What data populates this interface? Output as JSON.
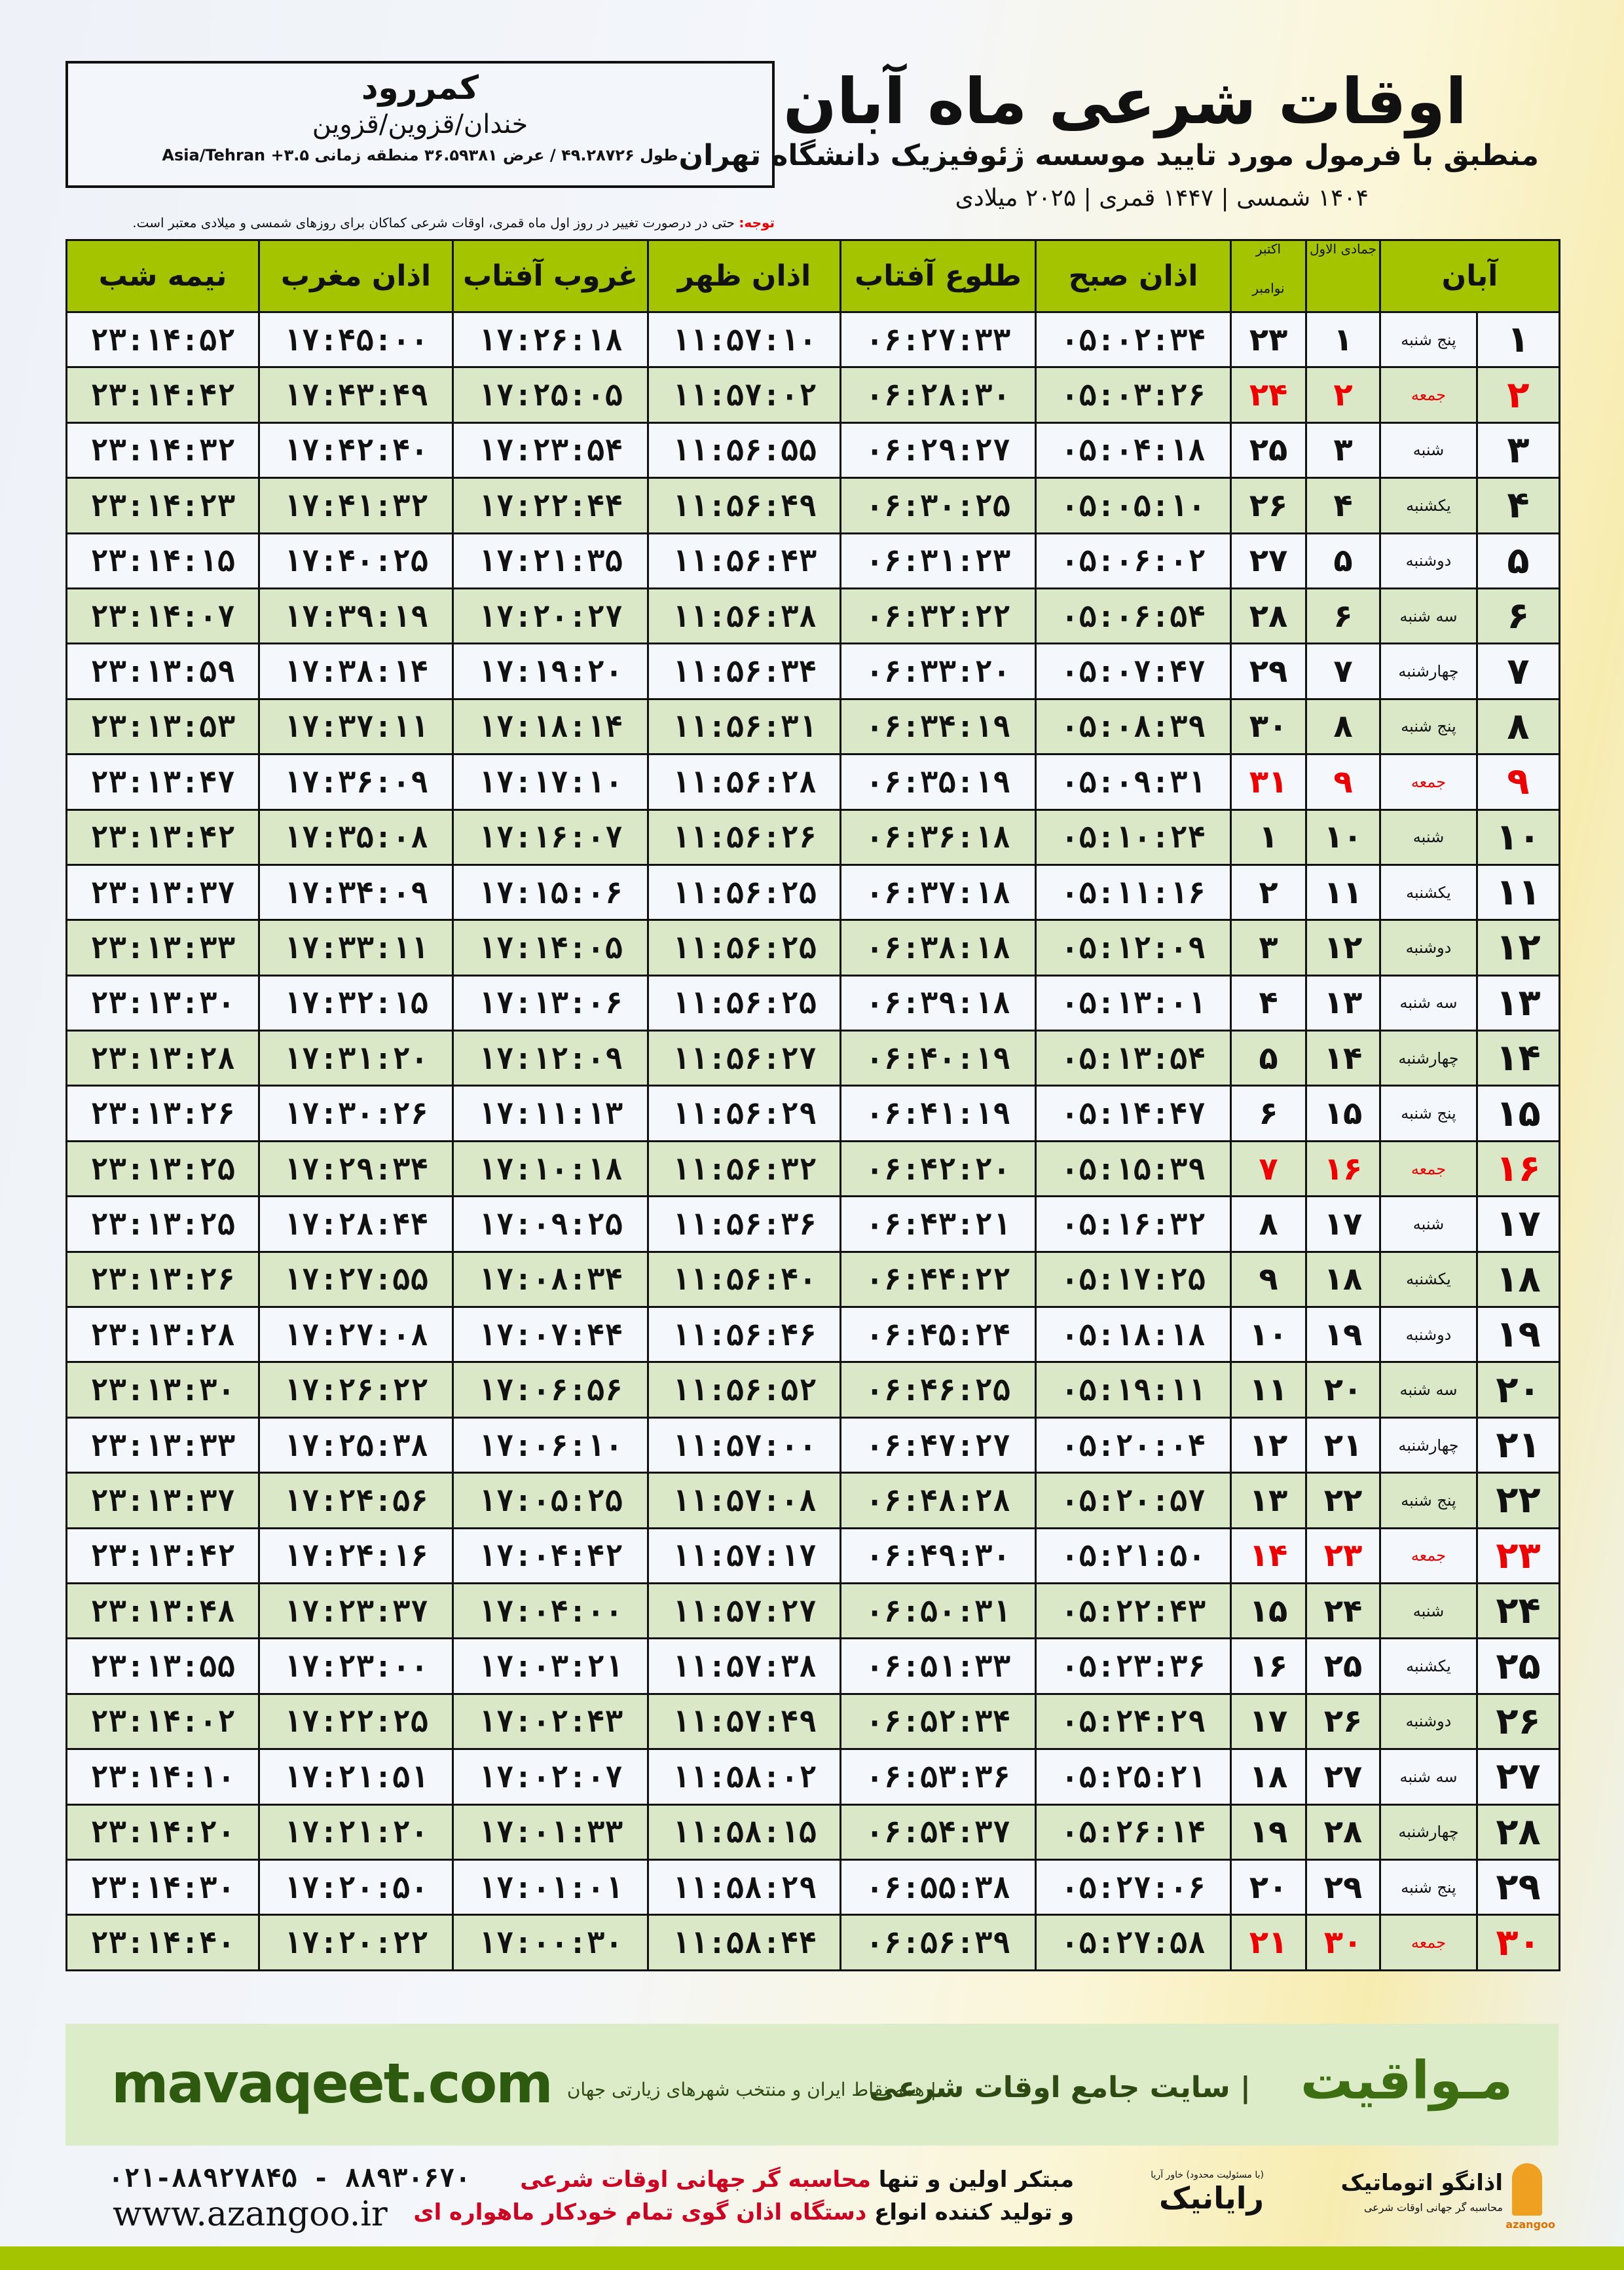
{
  "info": {
    "city": "کمررود",
    "province": "خندان/قزوین/قزوین",
    "coords": "طول ۴۹.۲۸۷۲۶ / عرض ۳۶.۵۹۳۸۱ منطقه زمانی ۳.۵+ Asia/Tehran"
  },
  "header": {
    "title": "اوقات شرعی ماه آبان",
    "subtitle": "منطبق با فرمول مورد تایید موسسه ژئوفیزیک دانشگاه تهران",
    "date": "۱۴۰۴ شمسی | ۱۴۴۷ قمری | ۲۰۲۵ میلادی"
  },
  "note": {
    "label": "توجه:",
    "text": " حتی در درصورت تغییر در روز اول ماه قمری، اوقات شرعی کماکان برای روزهای شمسی و میلادی معتبر است."
  },
  "table": {
    "headers": {
      "day": "آبان",
      "jumada": "جمادی الاول",
      "gregorian_top": "اکتبر",
      "gregorian_bottom": "نوامبر",
      "sobh": "اذان صبح",
      "tolu": "طلوع آفتاب",
      "zohr": "اذان ظهر",
      "ghorub": "غروب آفتاب",
      "maghreb": "اذان مغرب",
      "nimeh": "نیمه شب"
    },
    "highlight_color": "#e00000",
    "header_color": "#a4c400",
    "rows": [
      [
        "۱",
        "پنج شنبه",
        "۱",
        "۲۳",
        "۰۵:۰۲:۳۴",
        "۰۶:۲۷:۳۳",
        "۱۱:۵۷:۱۰",
        "۱۷:۲۶:۱۸",
        "۱۷:۴۵:۰۰",
        "۲۳:۱۴:۵۲"
      ],
      [
        "۲",
        "جمعه",
        "۲",
        "۲۴",
        "۰۵:۰۳:۲۶",
        "۰۶:۲۸:۳۰",
        "۱۱:۵۷:۰۲",
        "۱۷:۲۵:۰۵",
        "۱۷:۴۳:۴۹",
        "۲۳:۱۴:۴۲"
      ],
      [
        "۳",
        "شنبه",
        "۳",
        "۲۵",
        "۰۵:۰۴:۱۸",
        "۰۶:۲۹:۲۷",
        "۱۱:۵۶:۵۵",
        "۱۷:۲۳:۵۴",
        "۱۷:۴۲:۴۰",
        "۲۳:۱۴:۳۲"
      ],
      [
        "۴",
        "یکشنبه",
        "۴",
        "۲۶",
        "۰۵:۰۵:۱۰",
        "۰۶:۳۰:۲۵",
        "۱۱:۵۶:۴۹",
        "۱۷:۲۲:۴۴",
        "۱۷:۴۱:۳۲",
        "۲۳:۱۴:۲۳"
      ],
      [
        "۵",
        "دوشنبه",
        "۵",
        "۲۷",
        "۰۵:۰۶:۰۲",
        "۰۶:۳۱:۲۳",
        "۱۱:۵۶:۴۳",
        "۱۷:۲۱:۳۵",
        "۱۷:۴۰:۲۵",
        "۲۳:۱۴:۱۵"
      ],
      [
        "۶",
        "سه شنبه",
        "۶",
        "۲۸",
        "۰۵:۰۶:۵۴",
        "۰۶:۳۲:۲۲",
        "۱۱:۵۶:۳۸",
        "۱۷:۲۰:۲۷",
        "۱۷:۳۹:۱۹",
        "۲۳:۱۴:۰۷"
      ],
      [
        "۷",
        "چهارشنبه",
        "۷",
        "۲۹",
        "۰۵:۰۷:۴۷",
        "۰۶:۳۳:۲۰",
        "۱۱:۵۶:۳۴",
        "۱۷:۱۹:۲۰",
        "۱۷:۳۸:۱۴",
        "۲۳:۱۳:۵۹"
      ],
      [
        "۸",
        "پنج شنبه",
        "۸",
        "۳۰",
        "۰۵:۰۸:۳۹",
        "۰۶:۳۴:۱۹",
        "۱۱:۵۶:۳۱",
        "۱۷:۱۸:۱۴",
        "۱۷:۳۷:۱۱",
        "۲۳:۱۳:۵۳"
      ],
      [
        "۹",
        "جمعه",
        "۹",
        "۳۱",
        "۰۵:۰۹:۳۱",
        "۰۶:۳۵:۱۹",
        "۱۱:۵۶:۲۸",
        "۱۷:۱۷:۱۰",
        "۱۷:۳۶:۰۹",
        "۲۳:۱۳:۴۷"
      ],
      [
        "۱۰",
        "شنبه",
        "۱۰",
        "۱",
        "۰۵:۱۰:۲۴",
        "۰۶:۳۶:۱۸",
        "۱۱:۵۶:۲۶",
        "۱۷:۱۶:۰۷",
        "۱۷:۳۵:۰۸",
        "۲۳:۱۳:۴۲"
      ],
      [
        "۱۱",
        "یکشنبه",
        "۱۱",
        "۲",
        "۰۵:۱۱:۱۶",
        "۰۶:۳۷:۱۸",
        "۱۱:۵۶:۲۵",
        "۱۷:۱۵:۰۶",
        "۱۷:۳۴:۰۹",
        "۲۳:۱۳:۳۷"
      ],
      [
        "۱۲",
        "دوشنبه",
        "۱۲",
        "۳",
        "۰۵:۱۲:۰۹",
        "۰۶:۳۸:۱۸",
        "۱۱:۵۶:۲۵",
        "۱۷:۱۴:۰۵",
        "۱۷:۳۳:۱۱",
        "۲۳:۱۳:۳۳"
      ],
      [
        "۱۳",
        "سه شنبه",
        "۱۳",
        "۴",
        "۰۵:۱۳:۰۱",
        "۰۶:۳۹:۱۸",
        "۱۱:۵۶:۲۵",
        "۱۷:۱۳:۰۶",
        "۱۷:۳۲:۱۵",
        "۲۳:۱۳:۳۰"
      ],
      [
        "۱۴",
        "چهارشنبه",
        "۱۴",
        "۵",
        "۰۵:۱۳:۵۴",
        "۰۶:۴۰:۱۹",
        "۱۱:۵۶:۲۷",
        "۱۷:۱۲:۰۹",
        "۱۷:۳۱:۲۰",
        "۲۳:۱۳:۲۸"
      ],
      [
        "۱۵",
        "پنج شنبه",
        "۱۵",
        "۶",
        "۰۵:۱۴:۴۷",
        "۰۶:۴۱:۱۹",
        "۱۱:۵۶:۲۹",
        "۱۷:۱۱:۱۳",
        "۱۷:۳۰:۲۶",
        "۲۳:۱۳:۲۶"
      ],
      [
        "۱۶",
        "جمعه",
        "۱۶",
        "۷",
        "۰۵:۱۵:۳۹",
        "۰۶:۴۲:۲۰",
        "۱۱:۵۶:۳۲",
        "۱۷:۱۰:۱۸",
        "۱۷:۲۹:۳۴",
        "۲۳:۱۳:۲۵"
      ],
      [
        "۱۷",
        "شنبه",
        "۱۷",
        "۸",
        "۰۵:۱۶:۳۲",
        "۰۶:۴۳:۲۱",
        "۱۱:۵۶:۳۶",
        "۱۷:۰۹:۲۵",
        "۱۷:۲۸:۴۴",
        "۲۳:۱۳:۲۵"
      ],
      [
        "۱۸",
        "یکشنبه",
        "۱۸",
        "۹",
        "۰۵:۱۷:۲۵",
        "۰۶:۴۴:۲۲",
        "۱۱:۵۶:۴۰",
        "۱۷:۰۸:۳۴",
        "۱۷:۲۷:۵۵",
        "۲۳:۱۳:۲۶"
      ],
      [
        "۱۹",
        "دوشنبه",
        "۱۹",
        "۱۰",
        "۰۵:۱۸:۱۸",
        "۰۶:۴۵:۲۴",
        "۱۱:۵۶:۴۶",
        "۱۷:۰۷:۴۴",
        "۱۷:۲۷:۰۸",
        "۲۳:۱۳:۲۸"
      ],
      [
        "۲۰",
        "سه شنبه",
        "۲۰",
        "۱۱",
        "۰۵:۱۹:۱۱",
        "۰۶:۴۶:۲۵",
        "۱۱:۵۶:۵۲",
        "۱۷:۰۶:۵۶",
        "۱۷:۲۶:۲۲",
        "۲۳:۱۳:۳۰"
      ],
      [
        "۲۱",
        "چهارشنبه",
        "۲۱",
        "۱۲",
        "۰۵:۲۰:۰۴",
        "۰۶:۴۷:۲۷",
        "۱۱:۵۷:۰۰",
        "۱۷:۰۶:۱۰",
        "۱۷:۲۵:۳۸",
        "۲۳:۱۳:۳۳"
      ],
      [
        "۲۲",
        "پنج شنبه",
        "۲۲",
        "۱۳",
        "۰۵:۲۰:۵۷",
        "۰۶:۴۸:۲۸",
        "۱۱:۵۷:۰۸",
        "۱۷:۰۵:۲۵",
        "۱۷:۲۴:۵۶",
        "۲۳:۱۳:۳۷"
      ],
      [
        "۲۳",
        "جمعه",
        "۲۳",
        "۱۴",
        "۰۵:۲۱:۵۰",
        "۰۶:۴۹:۳۰",
        "۱۱:۵۷:۱۷",
        "۱۷:۰۴:۴۲",
        "۱۷:۲۴:۱۶",
        "۲۳:۱۳:۴۲"
      ],
      [
        "۲۴",
        "شنبه",
        "۲۴",
        "۱۵",
        "۰۵:۲۲:۴۳",
        "۰۶:۵۰:۳۱",
        "۱۱:۵۷:۲۷",
        "۱۷:۰۴:۰۰",
        "۱۷:۲۳:۳۷",
        "۲۳:۱۳:۴۸"
      ],
      [
        "۲۵",
        "یکشنبه",
        "۲۵",
        "۱۶",
        "۰۵:۲۳:۳۶",
        "۰۶:۵۱:۳۳",
        "۱۱:۵۷:۳۸",
        "۱۷:۰۳:۲۱",
        "۱۷:۲۳:۰۰",
        "۲۳:۱۳:۵۵"
      ],
      [
        "۲۶",
        "دوشنبه",
        "۲۶",
        "۱۷",
        "۰۵:۲۴:۲۹",
        "۰۶:۵۲:۳۴",
        "۱۱:۵۷:۴۹",
        "۱۷:۰۲:۴۳",
        "۱۷:۲۲:۲۵",
        "۲۳:۱۴:۰۲"
      ],
      [
        "۲۷",
        "سه شنبه",
        "۲۷",
        "۱۸",
        "۰۵:۲۵:۲۱",
        "۰۶:۵۳:۳۶",
        "۱۱:۵۸:۰۲",
        "۱۷:۰۲:۰۷",
        "۱۷:۲۱:۵۱",
        "۲۳:۱۴:۱۰"
      ],
      [
        "۲۸",
        "چهارشنبه",
        "۲۸",
        "۱۹",
        "۰۵:۲۶:۱۴",
        "۰۶:۵۴:۳۷",
        "۱۱:۵۸:۱۵",
        "۱۷:۰۱:۳۳",
        "۱۷:۲۱:۲۰",
        "۲۳:۱۴:۲۰"
      ],
      [
        "۲۹",
        "پنج شنبه",
        "۲۹",
        "۲۰",
        "۰۵:۲۷:۰۶",
        "۰۶:۵۵:۳۸",
        "۱۱:۵۸:۲۹",
        "۱۷:۰۱:۰۱",
        "۱۷:۲۰:۵۰",
        "۲۳:۱۴:۳۰"
      ],
      [
        "۳۰",
        "جمعه",
        "۳۰",
        "۲۱",
        "۰۵:۲۷:۵۸",
        "۰۶:۵۶:۳۹",
        "۱۱:۵۸:۴۴",
        "۱۷:۰۰:۳۰",
        "۱۷:۲۰:۲۲",
        "۲۳:۱۴:۴۰"
      ]
    ]
  },
  "banner": {
    "site": "mavaqeet.com",
    "brand": "مـواقیت",
    "tagline": "| سایت جامع اوقات شرعی",
    "subtag": "| همه نقاط ایران و منتخب شهرهای زیارتی جهان"
  },
  "footer": {
    "phone": "۰۲۱-۸۸۹۲۷۸۴۵ - ۸۸۹۳۰۶۷۰",
    "website": "www.azangoo.ir",
    "promo1_a": "مبتکر اولین و تنها ",
    "promo1_b": "محاسبه گر جهانی اوقات شرعی",
    "promo2_a": "و تولید کننده انواع ",
    "promo2_b": "دستگاه اذان گوی تمام خودکار ماهواره ای",
    "rayanik": "رایانیک",
    "rayanik_small": "(با مسئولیت محدود) خاور آریا",
    "azangoo_name": "اذانگو اتوماتیک",
    "azangoo_sub": "محاسبه گر جهانی اوقات شرعی",
    "azangoo_en": "azangoo"
  }
}
